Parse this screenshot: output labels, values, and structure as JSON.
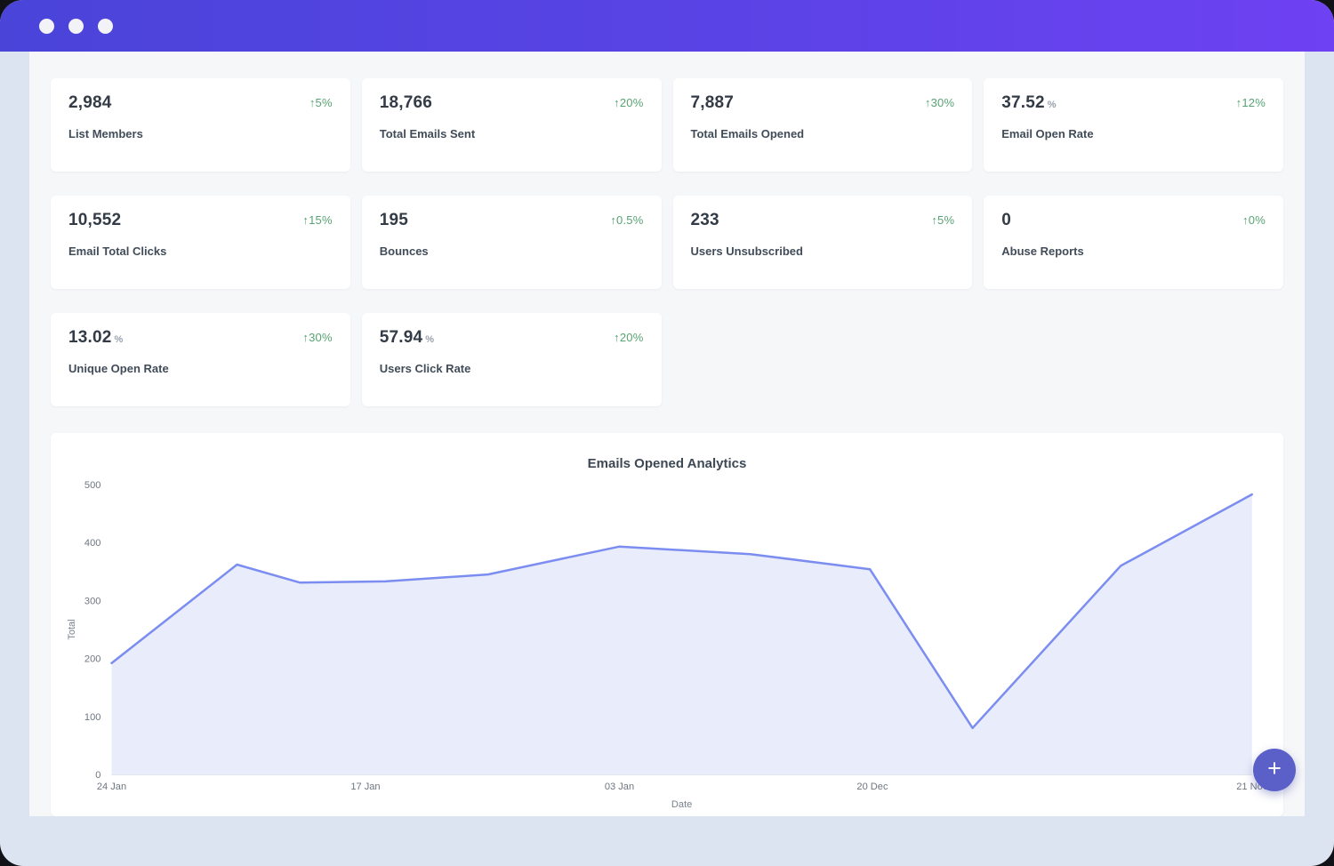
{
  "window": {
    "controls": [
      "dot",
      "dot",
      "dot"
    ]
  },
  "stats": [
    {
      "value": "2,984",
      "unit": "",
      "delta": "↑5%",
      "label": "List Members"
    },
    {
      "value": "18,766",
      "unit": "",
      "delta": "↑20%",
      "label": "Total Emails Sent"
    },
    {
      "value": "7,887",
      "unit": "",
      "delta": "↑30%",
      "label": "Total Emails Opened"
    },
    {
      "value": "37.52",
      "unit": "%",
      "delta": "↑12%",
      "label": "Email Open Rate"
    },
    {
      "value": "10,552",
      "unit": "",
      "delta": "↑15%",
      "label": "Email Total Clicks"
    },
    {
      "value": "195",
      "unit": "",
      "delta": "↑0.5%",
      "label": "Bounces"
    },
    {
      "value": "233",
      "unit": "",
      "delta": "↑5%",
      "label": "Users Unsubscribed"
    },
    {
      "value": "0",
      "unit": "",
      "delta": "↑0%",
      "label": "Abuse Reports"
    },
    {
      "value": "13.02",
      "unit": "%",
      "delta": "↑30%",
      "label": "Unique Open Rate"
    },
    {
      "value": "57.94",
      "unit": "%",
      "delta": "↑20%",
      "label": "Users Click Rate"
    }
  ],
  "chart_data": {
    "type": "area",
    "title": "Emails Opened Analytics",
    "xlabel": "Date",
    "ylabel": "Total",
    "ylim": [
      0,
      500
    ],
    "yticks": [
      0,
      100,
      200,
      300,
      400,
      500
    ],
    "xticks": [
      {
        "pos": 0.0,
        "label": "24 Jan"
      },
      {
        "pos": 0.2226,
        "label": "17 Jan"
      },
      {
        "pos": 0.4453,
        "label": "03 Jan"
      },
      {
        "pos": 0.6672,
        "label": "20 Dec"
      },
      {
        "pos": 1.0,
        "label": "21 Nov"
      }
    ],
    "points": [
      {
        "x": 0.0,
        "y": 192
      },
      {
        "x": 0.11,
        "y": 362
      },
      {
        "x": 0.165,
        "y": 331
      },
      {
        "x": 0.24,
        "y": 333
      },
      {
        "x": 0.33,
        "y": 345
      },
      {
        "x": 0.445,
        "y": 393
      },
      {
        "x": 0.56,
        "y": 380
      },
      {
        "x": 0.665,
        "y": 354
      },
      {
        "x": 0.755,
        "y": 80
      },
      {
        "x": 0.885,
        "y": 360
      },
      {
        "x": 1.0,
        "y": 483
      }
    ],
    "grid": false,
    "legend": false
  },
  "fab": {
    "label": "+"
  },
  "colors": {
    "titlebar_gradient_start": "#4a44d9",
    "titlebar_gradient_end": "#6e41f2",
    "frame": "#dce3f1",
    "page_bg": "#f6f7f9",
    "card_bg": "#ffffff",
    "value_text": "#333b46",
    "label_text": "#414c59",
    "delta_green": "#57a373",
    "fab_bg": "#5a60c8",
    "chart_line": "#7c8df1",
    "chart_fill": "#e9ecfa"
  }
}
